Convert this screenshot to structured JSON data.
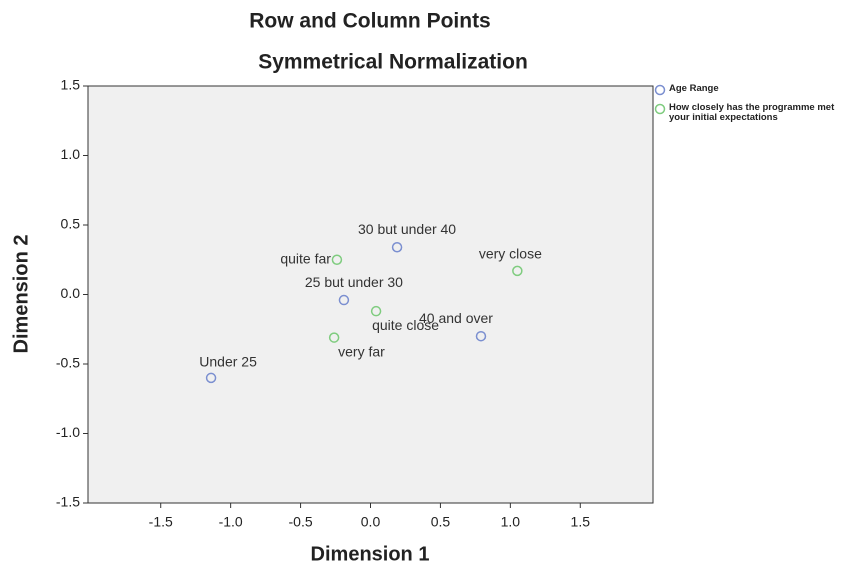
{
  "chart_data": {
    "type": "scatter",
    "title": "Row and Column Points",
    "subtitle": "Symmetrical Normalization",
    "xlabel": "Dimension 1",
    "ylabel": "Dimension 2",
    "xlim": [
      -2.02,
      2.02
    ],
    "ylim": [
      -1.5,
      1.5
    ],
    "xticks": [
      -1.5,
      {
        "value": -1,
        "label": "-1.0"
      },
      -0.5,
      {
        "value": 0,
        "label": "0.0"
      },
      0.5,
      {
        "value": 1,
        "label": "1.0"
      },
      1.5
    ],
    "yticks": [
      -1.5,
      {
        "value": -1,
        "label": "-1.0"
      },
      -0.5,
      {
        "value": 0,
        "label": "0.0"
      },
      0.5,
      {
        "value": 1,
        "label": "1.0"
      },
      1.5
    ],
    "grid": false,
    "legend": "right",
    "series": [
      {
        "name": "Age Range",
        "color": "#7b8fd0",
        "labels": [
          "Under 25",
          "25 but under 30",
          "30 but under 40",
          "40 and over"
        ],
        "x": [
          -1.14,
          -0.19,
          0.19,
          0.79
        ],
        "values": [
          -0.6,
          -0.04,
          0.34,
          -0.3
        ]
      },
      {
        "name": "How closely has the programme met your initial expectations",
        "color": "#7fcc7f",
        "labels": [
          "quite far",
          "very close",
          "quite close",
          "very far"
        ],
        "x": [
          -0.24,
          1.05,
          0.04,
          -0.26
        ],
        "values": [
          0.25,
          0.17,
          -0.12,
          -0.31
        ]
      }
    ]
  }
}
